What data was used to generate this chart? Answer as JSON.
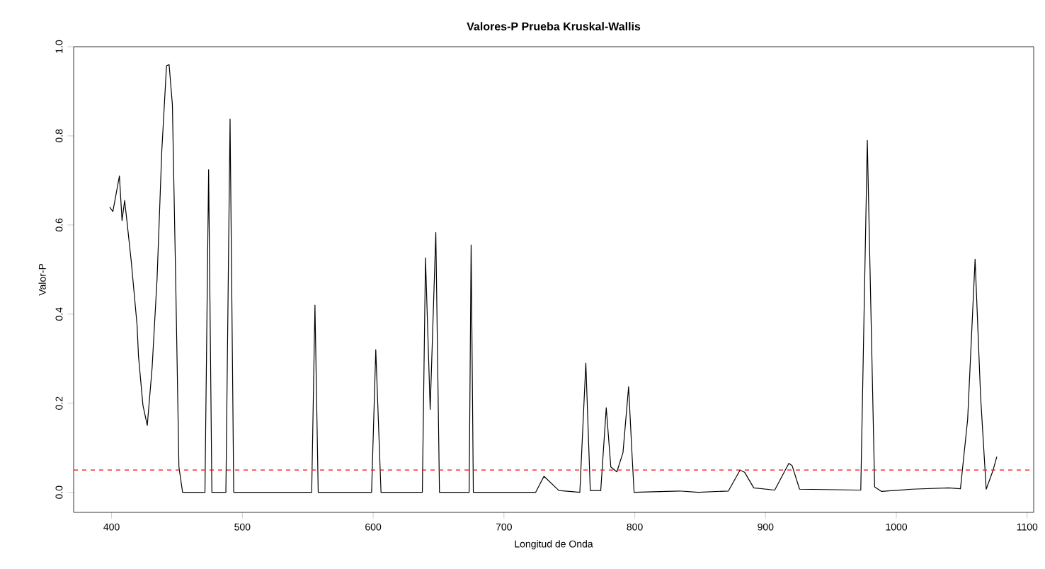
{
  "chart_data": {
    "type": "line",
    "title": "Valores-P Prueba Kruskal-Wallis",
    "xlabel": "Longitud de Onda",
    "ylabel": "Valor-P",
    "x": [
      398.6,
      401,
      406,
      408,
      410,
      411.7,
      415,
      419.5,
      420.6,
      424,
      427.3,
      431,
      434.8,
      438.4,
      442,
      444,
      446.5,
      449,
      451.5,
      454.3,
      471.4,
      474.2,
      476.7,
      487.4,
      490.6,
      493.4,
      553,
      555.5,
      558,
      598.8,
      602,
      606,
      637.6,
      640,
      643.6,
      647.9,
      650.7,
      673.4,
      674.9,
      676.6,
      724.2,
      730.6,
      742,
      758,
      762.6,
      766,
      774,
      778.2,
      781.7,
      786.3,
      791,
      795.3,
      798,
      799.5,
      834,
      848.5,
      871.6,
      880.5,
      884,
      891,
      907,
      917.8,
      920.3,
      926,
      972.8,
      977.8,
      983.4,
      988.7,
      1011.8,
      1040,
      1049,
      1054.5,
      1060.2,
      1064.4,
      1068.7,
      1074,
      1076.8
    ],
    "series": [
      {
        "color": "#000000",
        "values": [
          0.64,
          0.63,
          0.71,
          0.61,
          0.655,
          0.61,
          0.52,
          0.375,
          0.305,
          0.195,
          0.15,
          0.28,
          0.48,
          0.766,
          0.957,
          0.96,
          0.87,
          0.48,
          0.057,
          0,
          0,
          0.724,
          0,
          0,
          0.838,
          0,
          0,
          0.42,
          0,
          0,
          0.32,
          0,
          0,
          0.526,
          0.186,
          0.583,
          0,
          0,
          0.555,
          0,
          0,
          0.036,
          0.004,
          0,
          0.29,
          0.004,
          0.004,
          0.19,
          0.057,
          0.046,
          0.089,
          0.237,
          0.08,
          0,
          0.003,
          0,
          0.003,
          0.05,
          0.045,
          0.01,
          0.005,
          0.065,
          0.06,
          0.007,
          0.005,
          0.79,
          0.012,
          0.002,
          0.007,
          0.01,
          0.008,
          0.163,
          0.523,
          0.216,
          0.007,
          0.05,
          0.08
        ]
      }
    ],
    "xlim": [
      371,
      1105
    ],
    "ylim": [
      -0.045,
      1.0
    ],
    "xticks": [
      400,
      500,
      600,
      700,
      800,
      900,
      1000,
      1100
    ],
    "yticks": [
      {
        "value": 0,
        "label": "0.0"
      },
      {
        "value": 0.2,
        "label": "0.2"
      },
      {
        "value": 0.4,
        "label": "0.4"
      },
      {
        "value": 0.6,
        "label": "0.6"
      },
      {
        "value": 0.8,
        "label": "0.8"
      },
      {
        "value": 1,
        "label": "1.0"
      }
    ],
    "ref_lines": [
      {
        "axis": "y",
        "value": 0.05,
        "color": "#ff0000",
        "line_style": "dashed"
      }
    ],
    "grid": false,
    "marker": "none",
    "line_style": "solid"
  }
}
